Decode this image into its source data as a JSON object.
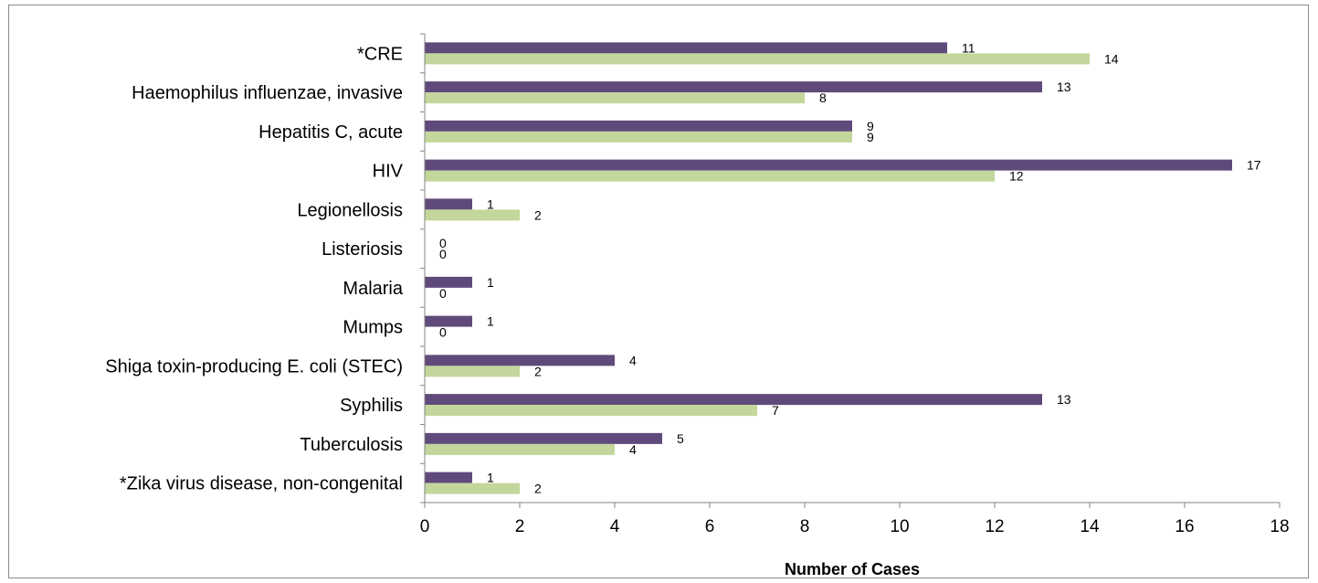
{
  "chart_data": {
    "type": "bar",
    "orientation": "horizontal",
    "title": "",
    "xlabel": "Number of Cases",
    "ylabel": "",
    "xlim": [
      0,
      18
    ],
    "x_ticks": [
      0,
      2,
      4,
      6,
      8,
      10,
      12,
      14,
      16,
      18
    ],
    "grid": false,
    "legend": "none",
    "categories": [
      "*CRE",
      "Haemophilus influenzae, invasive",
      "Hepatitis C, acute",
      "HIV",
      "Legionellosis",
      "Listeriosis",
      "Malaria",
      "Mumps",
      "Shiga toxin-producing E. coli (STEC)",
      "Syphilis",
      "Tuberculosis",
      "*Zika virus disease, non-congenital"
    ],
    "series": [
      {
        "color": "#604a7b",
        "values": [
          11,
          13,
          9,
          17,
          1,
          0,
          1,
          1,
          4,
          13,
          5,
          1
        ]
      },
      {
        "color": "#c3d69b",
        "values": [
          14,
          8,
          9,
          12,
          2,
          0,
          0,
          0,
          2,
          7,
          4,
          2
        ]
      }
    ]
  }
}
